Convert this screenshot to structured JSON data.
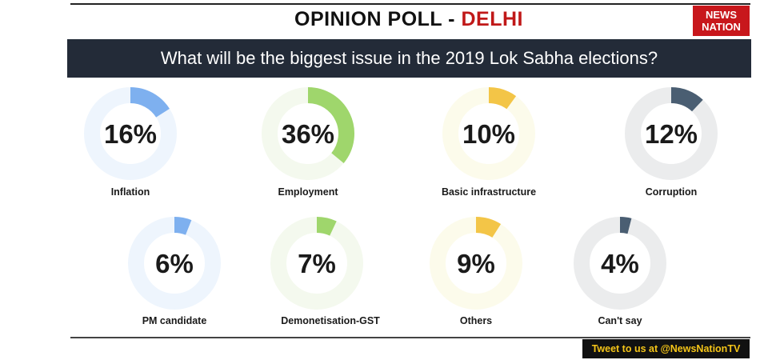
{
  "header": {
    "title_prefix": "OPINION POLL - ",
    "title_city": "DELHI",
    "logo_line1": "NEWS",
    "logo_line2": "NATION"
  },
  "question": "What will be the biggest issue in the 2019 Lok Sabha elections?",
  "footer": {
    "tweet": "Tweet to us at @NewsNationTV"
  },
  "colors": {
    "blue": "#7eb0ef",
    "blue_track": "#eef5fd",
    "green": "#9fd66c",
    "green_track": "#f4f9ee",
    "yellow": "#f3c547",
    "yellow_track": "#fcfbeb",
    "slate": "#4a5e72",
    "slate_track": "#ebeced"
  },
  "chart_data": {
    "type": "donut",
    "unit": "%",
    "items": [
      {
        "label": "Inflation",
        "value": 16,
        "display": "16%",
        "color": "blue"
      },
      {
        "label": "Employment",
        "value": 36,
        "display": "36%",
        "color": "green"
      },
      {
        "label": "Basic infrastructure",
        "value": 10,
        "display": "10%",
        "color": "yellow"
      },
      {
        "label": "Corruption",
        "value": 12,
        "display": "12%",
        "color": "slate"
      },
      {
        "label": "PM candidate",
        "value": 6,
        "display": "6%",
        "color": "blue"
      },
      {
        "label": "Demonetisation-GST",
        "value": 7,
        "display": "7%",
        "color": "green"
      },
      {
        "label": "Others",
        "value": 9,
        "display": "9%",
        "color": "yellow"
      },
      {
        "label": "Can't say",
        "value": 4,
        "display": "4%",
        "color": "slate"
      }
    ]
  }
}
